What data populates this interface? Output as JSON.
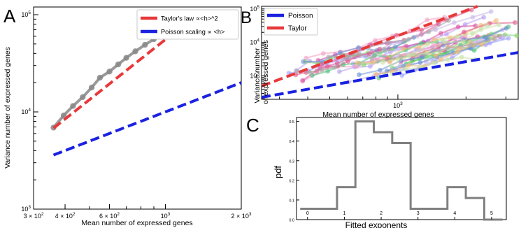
{
  "chart_data": [
    {
      "panel": "A",
      "type": "line",
      "xlabel": "Mean number of expressed genes",
      "ylabel": "Variance number of expressed genes",
      "xscale": "log",
      "yscale": "log",
      "xlim": [
        300,
        2000
      ],
      "ylim": [
        1000,
        120000
      ],
      "x_ticks": [
        {
          "value": 300,
          "base": "3 × 10",
          "exp": "2"
        },
        {
          "value": 400,
          "base": "4 × 10",
          "exp": "2"
        },
        {
          "value": 600,
          "base": "6 × 10",
          "exp": "2"
        },
        {
          "value": 1000,
          "base": "10",
          "exp": "3"
        },
        {
          "value": 2000,
          "base": "2 × 10",
          "exp": "3"
        }
      ],
      "y_ticks": [
        {
          "value": 1000,
          "base": "10",
          "exp": "3"
        },
        {
          "value": 10000,
          "base": "10",
          "exp": "4"
        },
        {
          "value": 100000,
          "base": "10",
          "exp": "5"
        }
      ],
      "legend_position": "top-right",
      "series": [
        {
          "name": "Taylor's law ∝<h>^2",
          "color": "#e8393a",
          "style": "dashed",
          "x": [
            360,
            1230
          ],
          "y": [
            6800,
            85000
          ]
        },
        {
          "name": "Poisson scaling ∝ <h>",
          "color": "#1a22e0",
          "style": "dashed",
          "x": [
            360,
            2000
          ],
          "y": [
            3600,
            20000
          ]
        }
      ],
      "data_points": {
        "color": "#888888",
        "x": [
          360,
          395,
          430,
          470,
          510,
          550,
          600,
          650,
          700,
          760,
          830,
          900,
          970,
          1060,
          1160,
          1260
        ],
        "y": [
          6900,
          9200,
          11500,
          14200,
          17800,
          22500,
          26000,
          30800,
          36000,
          42000,
          49000,
          56000,
          64000,
          70000,
          76000,
          79000
        ]
      }
    },
    {
      "panel": "B",
      "type": "scatter",
      "xlabel": "Mean number of expressed genes",
      "ylabel_line1": "Variance number",
      "ylabel_line2": "of expressed genes",
      "xscale": "log",
      "yscale": "log",
      "xlim": [
        250,
        3400
      ],
      "ylim": [
        200,
        120000
      ],
      "x_ticks": [
        {
          "value": 1000,
          "base": "10",
          "exp": "3"
        }
      ],
      "y_ticks": [
        {
          "value": 1000,
          "base": "10",
          "exp": "3"
        },
        {
          "value": 10000,
          "base": "10",
          "exp": "4"
        },
        {
          "value": 100000,
          "base": "10",
          "exp": "5"
        }
      ],
      "legend_position": "top-left",
      "series": [
        {
          "name": "Poisson",
          "color": "#1a22e0",
          "style": "dashed",
          "x": [
            250,
            3400
          ],
          "y": [
            230,
            5000
          ]
        },
        {
          "name": "Taylor",
          "color": "#e8393a",
          "style": "dashed",
          "x": [
            250,
            2250
          ],
          "y": [
            500,
            120000
          ]
        }
      ],
      "cloud_colors": [
        "#9ea0ff",
        "#b89cf0",
        "#f49ec4",
        "#d94fa3",
        "#4fbf7a",
        "#7fd36b",
        "#c9b8e8",
        "#6b8fd6",
        "#f4b97a",
        "#e05a8a",
        "#aaaaaa",
        "#c6e2a6"
      ]
    },
    {
      "panel": "C",
      "type": "bar",
      "histogram": true,
      "xlabel": "Fitted exponents",
      "ylabel": "pdf",
      "xlim": [
        -0.3,
        5.4
      ],
      "ylim": [
        0,
        0.52
      ],
      "x_ticks": [
        0,
        1,
        2,
        3,
        4,
        5
      ],
      "y_ticks": [
        "0.0",
        "0.1",
        "0.2",
        "0.3",
        "0.4",
        "0.5"
      ],
      "bin_edges": [
        -0.2,
        0.3,
        0.8,
        1.3,
        1.8,
        2.3,
        2.8,
        3.3,
        3.8,
        4.3,
        4.8
      ],
      "values": [
        0.055,
        0.055,
        0.165,
        0.5,
        0.445,
        0.39,
        0.055,
        0.055,
        0.165,
        0.11,
        0.0
      ],
      "color": "#808080"
    }
  ]
}
